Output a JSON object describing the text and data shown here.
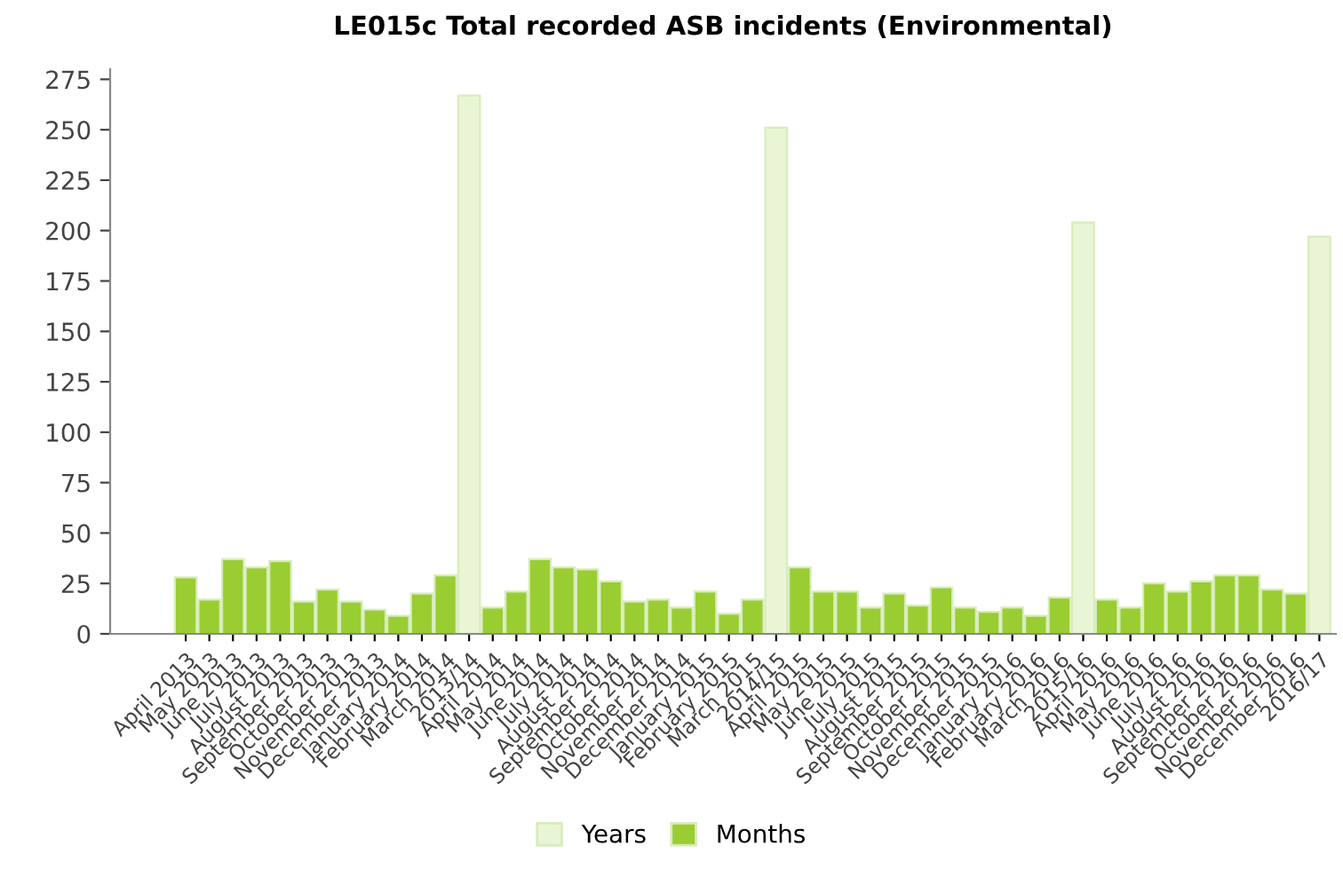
{
  "chart_data": {
    "type": "bar",
    "title": "LE015c Total recorded ASB incidents (Environmental)",
    "categories": [
      "April 2013",
      "May 2013",
      "June 2013",
      "July 2013",
      "August 2013",
      "September 2013",
      "October 2013",
      "November 2013",
      "December 2013",
      "January 2014",
      "February 2014",
      "March 2014",
      "2013/14",
      "April 2014",
      "May 2014",
      "June 2014",
      "July 2014",
      "August 2014",
      "September 2014",
      "October 2014",
      "November 2014",
      "December 2014",
      "January 2015",
      "February 2015",
      "March 2015",
      "2014/15",
      "April 2015",
      "May 2015",
      "June 2015",
      "July 2015",
      "August 2015",
      "September 2015",
      "October 2015",
      "November 2015",
      "December 2015",
      "January 2016",
      "February 2016",
      "March 2016",
      "2015/16",
      "April 2016",
      "May 2016",
      "June 2016",
      "July 2016",
      "August 2016",
      "September 2016",
      "October 2016",
      "November 2016",
      "December 2016",
      "2016/17"
    ],
    "series": [
      {
        "name": "Years",
        "color": "#eaf5d6",
        "values": [
          null,
          null,
          null,
          null,
          null,
          null,
          null,
          null,
          null,
          null,
          null,
          null,
          267,
          null,
          null,
          null,
          null,
          null,
          null,
          null,
          null,
          null,
          null,
          null,
          null,
          251,
          null,
          null,
          null,
          null,
          null,
          null,
          null,
          null,
          null,
          null,
          null,
          null,
          204,
          null,
          null,
          null,
          null,
          null,
          null,
          null,
          null,
          null,
          197
        ]
      },
      {
        "name": "Months",
        "color": "#9acd32",
        "values": [
          28,
          17,
          37,
          33,
          36,
          16,
          22,
          16,
          12,
          9,
          20,
          29,
          null,
          13,
          21,
          37,
          33,
          32,
          26,
          16,
          17,
          13,
          21,
          10,
          17,
          null,
          33,
          21,
          21,
          13,
          20,
          14,
          23,
          13,
          11,
          13,
          9,
          18,
          null,
          17,
          13,
          25,
          21,
          26,
          29,
          29,
          22,
          20,
          null
        ]
      }
    ],
    "ylim": [
      0,
      280
    ],
    "yticks": [
      0,
      25,
      50,
      75,
      100,
      125,
      150,
      175,
      200,
      225,
      250,
      275
    ],
    "grid": false,
    "legend": "bottom"
  }
}
